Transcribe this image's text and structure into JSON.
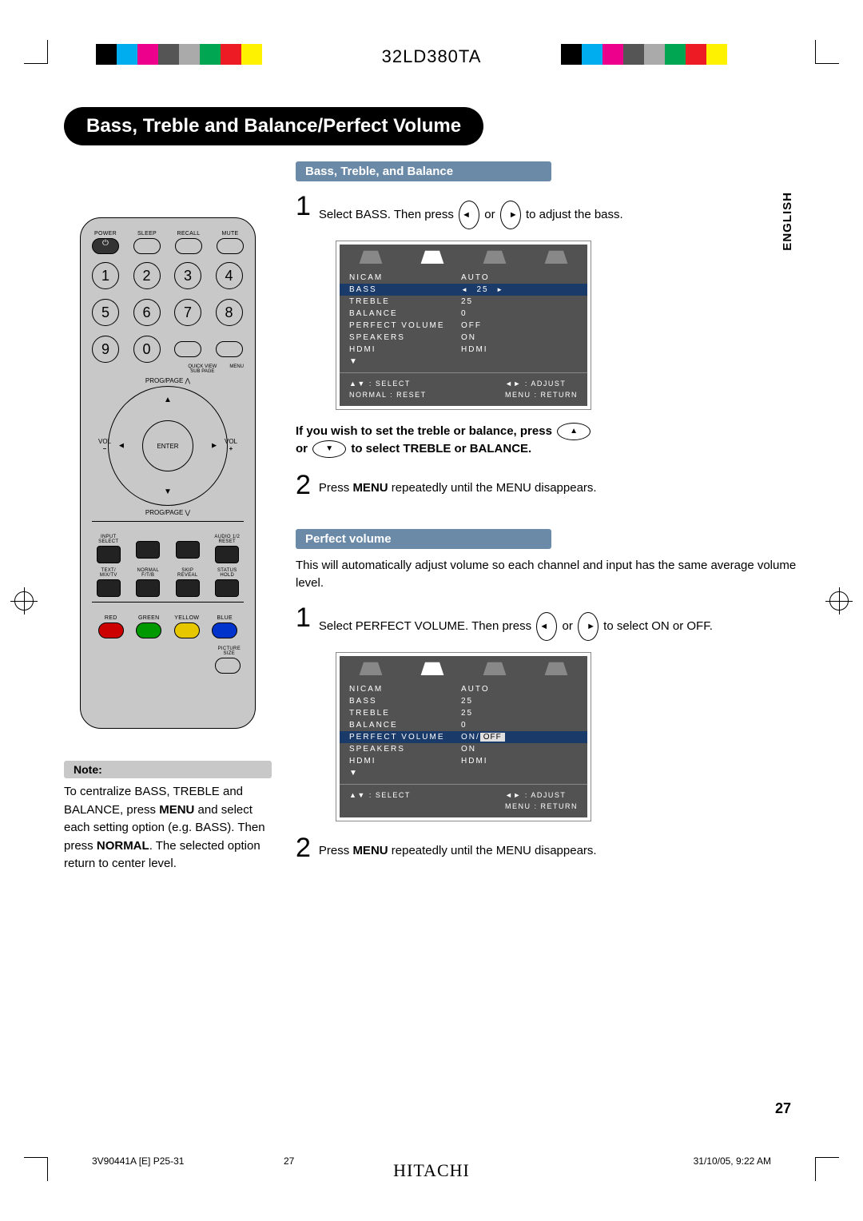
{
  "model": "32LD380TA",
  "language_tab": "ENGLISH",
  "title": "Bass, Treble and Balance/Perfect Volume",
  "sections": {
    "s1": {
      "header": "Bass, Treble, and Balance",
      "step1": "Select BASS. Then press",
      "step1_mid": "or",
      "step1_end": "to adjust the bass.",
      "mid_note_a": "If you wish to set the treble or balance, press",
      "mid_note_b": "or",
      "mid_note_c": "to select TREBLE or BALANCE.",
      "step2_a": "Press ",
      "step2_b": "MENU",
      "step2_c": " repeatedly until the MENU disappears."
    },
    "s2": {
      "header": "Perfect volume",
      "intro": "This will automatically adjust volume so each channel and input has the same average volume level.",
      "step1_a": "Select PERFECT VOLUME. Then press",
      "step1_mid": "or",
      "step1_b": "to select ON or OFF.",
      "step2_a": "Press ",
      "step2_b": "MENU",
      "step2_c": " repeatedly until the MENU disappears."
    }
  },
  "note": {
    "header": "Note:",
    "body_a": "To centralize BASS, TREBLE and BALANCE, press ",
    "body_b": "MENU",
    "body_c": " and select each setting option (e.g. BASS). Then press ",
    "body_d": "NORMAL",
    "body_e": ". The selected option return to center level."
  },
  "osd1": {
    "rows": [
      {
        "k": "NICAM",
        "v": "AUTO",
        "sel": false
      },
      {
        "k": "BASS",
        "v": "25",
        "sel": true,
        "arrows": true
      },
      {
        "k": "TREBLE",
        "v": "25",
        "sel": false
      },
      {
        "k": "BALANCE",
        "v": "0",
        "sel": false
      },
      {
        "k": "PERFECT VOLUME",
        "v": "OFF",
        "sel": false
      },
      {
        "k": "SPEAKERS",
        "v": "ON",
        "sel": false
      },
      {
        "k": "HDMI",
        "v": "HDMI",
        "sel": false
      },
      {
        "k": "▼",
        "v": "",
        "sel": false
      }
    ],
    "footer_l1": "▲▼ : SELECT",
    "footer_l2": "NORMAL : RESET",
    "footer_r1": "◄► : ADJUST",
    "footer_r2": "MENU : RETURN"
  },
  "osd2": {
    "rows": [
      {
        "k": "NICAM",
        "v": "AUTO",
        "sel": false
      },
      {
        "k": "BASS",
        "v": "25",
        "sel": false
      },
      {
        "k": "TREBLE",
        "v": "25",
        "sel": false
      },
      {
        "k": "BALANCE",
        "v": "0",
        "sel": false
      },
      {
        "k": "PERFECT VOLUME",
        "v": "ON/OFF",
        "sel": true,
        "onoff": true
      },
      {
        "k": "SPEAKERS",
        "v": "ON",
        "sel": false
      },
      {
        "k": "HDMI",
        "v": "HDMI",
        "sel": false
      },
      {
        "k": "▼",
        "v": "",
        "sel": false
      }
    ],
    "footer_l1": "▲▼ : SELECT",
    "footer_l2": "",
    "footer_r1": "◄► : ADJUST",
    "footer_r2": "MENU : RETURN"
  },
  "remote": {
    "top": [
      "POWER",
      "SLEEP",
      "RECALL",
      "MUTE"
    ],
    "nums": [
      "1",
      "2",
      "3",
      "4",
      "5",
      "6",
      "7",
      "8",
      "9",
      "0"
    ],
    "sub_labels": [
      "QUICK VIEW",
      "SUB PAGE",
      "MENU"
    ],
    "prog_up": "PROG/PAGE ⋀",
    "prog_down": "PROG/PAGE ⋁",
    "enter": "ENTER",
    "vol": "VOL",
    "small": [
      {
        "t": "INPUT SELECT",
        "b": ""
      },
      {
        "t": "",
        "b": ""
      },
      {
        "t": "",
        "b": ""
      },
      {
        "t": "AUDIO 1/2",
        "b": "RESET"
      },
      {
        "t": "TEXT/",
        "b": "MIX/TV"
      },
      {
        "t": "NORMAL",
        "b": "F/T/B"
      },
      {
        "t": "SKIP",
        "b": "REVEAL"
      },
      {
        "t": "STATUS",
        "b": "HOLD"
      }
    ],
    "colors": [
      {
        "l": "RED",
        "c": "#cc0000"
      },
      {
        "l": "GREEN",
        "c": "#009900"
      },
      {
        "l": "YELLOW",
        "c": "#e6c700"
      },
      {
        "l": "BLUE",
        "c": "#0033cc"
      }
    ],
    "picsize": "PICTURE SIZE"
  },
  "colorbars": [
    "#000000",
    "#00aeef",
    "#ec008c",
    "#555555",
    "#aaaaaa",
    "#00a651",
    "#ed1c24",
    "#fff200"
  ],
  "page_number": "27",
  "footer": {
    "file": "3V90441A [E] P25-31",
    "page": "27",
    "date": "31/10/05, 9:22 AM"
  },
  "brand": "HITACHI"
}
